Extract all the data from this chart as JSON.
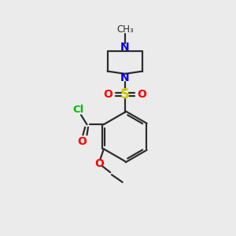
{
  "background_color": "#ebebeb",
  "bond_color": "#2d2d2d",
  "colors": {
    "N": "#0000ee",
    "O": "#ff0000",
    "S": "#cccc00",
    "Cl": "#00bb00",
    "C": "#2d2d2d"
  },
  "figsize": [
    3.0,
    3.0
  ],
  "dpi": 100,
  "lw": 1.6
}
